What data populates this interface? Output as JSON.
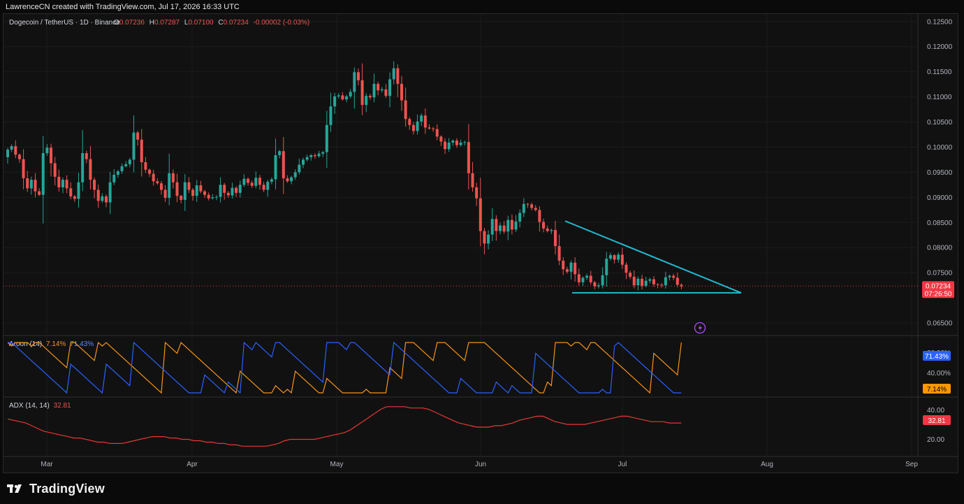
{
  "header": {
    "credit": "LawrenceCN created with TradingView.com, Jul 17, 2026 16:33 UTC"
  },
  "legend": {
    "symbol": "Dogecoin / TetherUS · 1D · Binance",
    "o_label": "O",
    "o_value": "0.07236",
    "h_label": "H",
    "h_value": "0.07287",
    "l_label": "L",
    "l_value": "0.07100",
    "c_label": "C",
    "c_value": "0.07234",
    "change": "-0.00002 (-0.03%)"
  },
  "price_axis": {
    "ticks": [
      "0.12500",
      "0.12000",
      "0.11500",
      "0.11000",
      "0.10500",
      "0.10000",
      "0.09500",
      "0.09000",
      "0.08500",
      "0.08000",
      "0.07500",
      "0.06500"
    ],
    "last_price": "0.07234",
    "countdown": "07:26:50"
  },
  "aroon": {
    "label": "Aroon (14)",
    "down_value": "7.14%",
    "up_value": "71.43%",
    "ticks": [
      "80.00%",
      "40.00%"
    ],
    "up_badge": "71.43%",
    "down_badge": "7.14%"
  },
  "adx": {
    "label": "ADX (14, 14)",
    "value": "32.81",
    "ticks": [
      "40.00",
      "20.00"
    ],
    "badge": "32.81"
  },
  "time_axis": {
    "labels": [
      "Mar",
      "Apr",
      "May",
      "Jun",
      "Jul",
      "Aug",
      "Sep"
    ]
  },
  "brand": {
    "name": "TradingView"
  },
  "colors": {
    "up": "#26a69a",
    "down": "#ef5350",
    "trendline": "#1fbcd2",
    "aroon_up": "#2962ff",
    "aroon_down": "#f7931a",
    "adx": "#e53935",
    "price_badge": "#f23645",
    "aroon_up_badge": "#2962ff",
    "aroon_down_badge": "#ff9800"
  },
  "chart_data": [
    {
      "type": "candlestick",
      "title": "Dogecoin / TetherUS · 1D · Binance",
      "ylim": [
        0.0625,
        0.1265
      ],
      "y_ticks": [
        0.125,
        0.12,
        0.115,
        0.11,
        0.105,
        0.1,
        0.095,
        0.09,
        0.085,
        0.08,
        0.075,
        0.065
      ],
      "x_ticks": [
        "Mar",
        "Apr",
        "May",
        "Jun",
        "Jul",
        "Aug",
        "Sep"
      ],
      "closes": [
        0.0995,
        0.1002,
        0.0985,
        0.0976,
        0.0938,
        0.0918,
        0.0935,
        0.0912,
        0.0905,
        0.0988,
        0.0999,
        0.0968,
        0.0941,
        0.092,
        0.0935,
        0.0918,
        0.0902,
        0.0897,
        0.093,
        0.0988,
        0.0976,
        0.0935,
        0.0915,
        0.0893,
        0.0902,
        0.089,
        0.093,
        0.0945,
        0.0952,
        0.0962,
        0.0966,
        0.0975,
        0.1029,
        0.1015,
        0.097,
        0.0955,
        0.0947,
        0.0932,
        0.0928,
        0.0915,
        0.0899,
        0.0948,
        0.093,
        0.0903,
        0.0895,
        0.093,
        0.0915,
        0.0903,
        0.0924,
        0.0912,
        0.0905,
        0.0898,
        0.09,
        0.0901,
        0.0925,
        0.0909,
        0.0904,
        0.0919,
        0.0909,
        0.0925,
        0.0937,
        0.0929,
        0.0923,
        0.0939,
        0.0925,
        0.0915,
        0.0931,
        0.0936,
        0.0984,
        0.0992,
        0.0938,
        0.0932,
        0.094,
        0.095,
        0.0965,
        0.0975,
        0.098,
        0.0984,
        0.0982,
        0.0987,
        0.099,
        0.1044,
        0.1081,
        0.1101,
        0.1103,
        0.1095,
        0.1101,
        0.111,
        0.1149,
        0.1133,
        0.1084,
        0.1102,
        0.1099,
        0.1126,
        0.1113,
        0.1115,
        0.1102,
        0.1135,
        0.1157,
        0.1126,
        0.1093,
        0.1056,
        0.1044,
        0.1032,
        0.1051,
        0.1063,
        0.1039,
        0.1037,
        0.1036,
        0.1021,
        0.1011,
        0.0996,
        0.1009,
        0.1013,
        0.1004,
        0.1009,
        0.101,
        0.0948,
        0.092,
        0.0898,
        0.0833,
        0.0808,
        0.0826,
        0.0857,
        0.0833,
        0.0844,
        0.0832,
        0.0855,
        0.0836,
        0.0852,
        0.0869,
        0.0887,
        0.0886,
        0.0879,
        0.0875,
        0.0851,
        0.0838,
        0.0833,
        0.0835,
        0.0803,
        0.0774,
        0.0757,
        0.0752,
        0.077,
        0.0747,
        0.0731,
        0.074,
        0.0744,
        0.0731,
        0.0723,
        0.0725,
        0.0745,
        0.0778,
        0.0785,
        0.0776,
        0.0786,
        0.0766,
        0.075,
        0.0742,
        0.0725,
        0.0738,
        0.0724,
        0.0734,
        0.0737,
        0.0727,
        0.0726,
        0.0725,
        0.0741,
        0.0744,
        0.074,
        0.0726,
        0.0723
      ]
    },
    {
      "type": "line",
      "title": "Aroon (14)",
      "ylim": [
        0,
        100
      ],
      "series": [
        {
          "name": "Aroon Up",
          "current": 71.43
        },
        {
          "name": "Aroon Down",
          "current": 7.14
        }
      ]
    },
    {
      "type": "line",
      "title": "ADX (14, 14)",
      "ylim": [
        10,
        50
      ],
      "series": [
        {
          "name": "ADX",
          "values": [
            36,
            35,
            34,
            33,
            31,
            29,
            27,
            26,
            25,
            24,
            23,
            22,
            22,
            21,
            20,
            19,
            19,
            18,
            18,
            18,
            19,
            20,
            21,
            22,
            23,
            23,
            23,
            22,
            22,
            21,
            21,
            20,
            20,
            19,
            19,
            18,
            18,
            17,
            17,
            16,
            16,
            16,
            16,
            16,
            17,
            18,
            20,
            21,
            21,
            21,
            21,
            21,
            22,
            23,
            24,
            25,
            26,
            28,
            31,
            34,
            37,
            40,
            43,
            45,
            45,
            45,
            45,
            44,
            44,
            44,
            43,
            41,
            39,
            37,
            35,
            33,
            32,
            31,
            30,
            30,
            30,
            31,
            31,
            32,
            33,
            35,
            36,
            37,
            38,
            38,
            36,
            34,
            33,
            32,
            32,
            32,
            32,
            33,
            34,
            35,
            36,
            37,
            38,
            38,
            37,
            36,
            35,
            34,
            34,
            34,
            33,
            33,
            33
          ]
        }
      ]
    }
  ]
}
